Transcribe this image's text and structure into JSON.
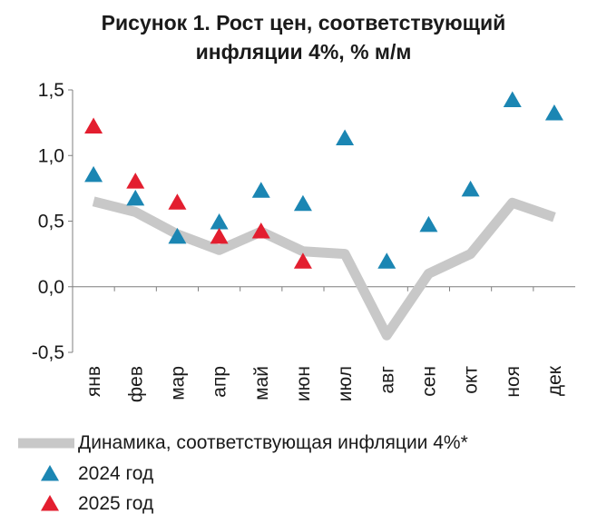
{
  "chart_data": {
    "type": "scatter",
    "title": "Рисунок 1. Рост цен, соответствующий",
    "title_line2": "инфляции 4%, % м/м",
    "xlabel": "",
    "ylabel": "",
    "categories": [
      "янв",
      "фев",
      "мар",
      "апр",
      "май",
      "июн",
      "июл",
      "авг",
      "сен",
      "окт",
      "ноя",
      "дек"
    ],
    "ylim": [
      -0.5,
      1.5
    ],
    "yticks": [
      "1,5",
      "1,0",
      "0,5",
      "0,0",
      "-0,5"
    ],
    "grid": false,
    "legend_position": "bottom",
    "series": [
      {
        "name": "Динамика, соответствующая инфляции 4%*",
        "kind": "line",
        "color": "#c8c8c8",
        "values": [
          0.65,
          0.57,
          0.4,
          0.28,
          0.42,
          0.27,
          0.25,
          -0.37,
          0.1,
          0.25,
          0.64,
          0.53
        ]
      },
      {
        "name": "2024 год",
        "kind": "marker",
        "color": "#1b86b3",
        "values": [
          0.85,
          0.67,
          0.38,
          0.49,
          0.73,
          0.63,
          1.13,
          0.19,
          0.47,
          0.74,
          1.42,
          1.32
        ]
      },
      {
        "name": "2025 год",
        "kind": "marker",
        "color": "#e31e2f",
        "values": [
          1.22,
          0.8,
          0.64,
          0.38,
          0.42,
          0.19,
          null,
          null,
          null,
          null,
          null,
          null
        ]
      }
    ]
  }
}
